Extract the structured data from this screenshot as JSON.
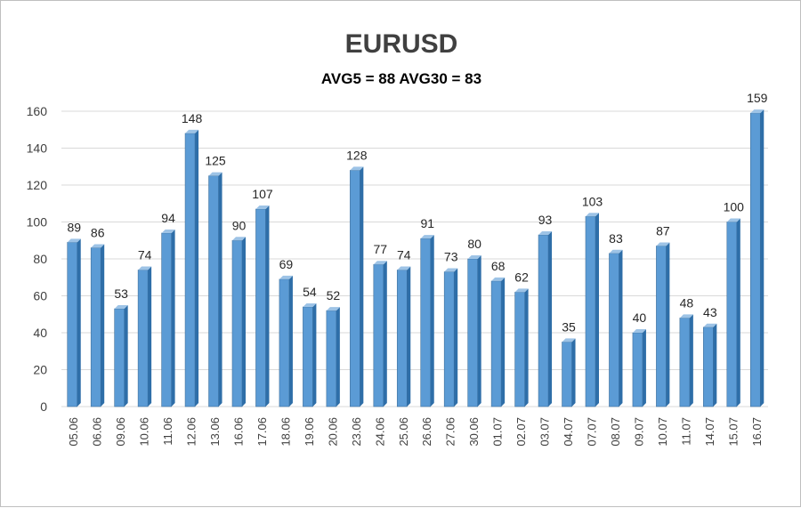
{
  "chart_data": {
    "type": "bar",
    "title": "EURUSD",
    "subtitle": "AVG5 = 88 AVG30 = 83",
    "categories": [
      "05.06",
      "06.06",
      "09.06",
      "10.06",
      "11.06",
      "12.06",
      "13.06",
      "16.06",
      "17.06",
      "18.06",
      "19.06",
      "20.06",
      "23.06",
      "24.06",
      "25.06",
      "26.06",
      "27.06",
      "30.06",
      "01.07",
      "02.07",
      "03.07",
      "04.07",
      "07.07",
      "08.07",
      "09.07",
      "10.07",
      "11.07",
      "14.07",
      "15.07",
      "16.07"
    ],
    "values": [
      89,
      86,
      53,
      74,
      94,
      148,
      125,
      90,
      107,
      69,
      54,
      52,
      128,
      77,
      74,
      91,
      73,
      80,
      68,
      62,
      93,
      35,
      103,
      83,
      40,
      87,
      48,
      43,
      100,
      159
    ],
    "ylim": [
      0,
      160
    ],
    "yticks": [
      0,
      20,
      40,
      60,
      80,
      100,
      120,
      140,
      160
    ],
    "grid": true,
    "legend": "none",
    "colors": {
      "bar_front": "#5b9bd5",
      "bar_side": "#2e6ea8",
      "bar_top": "#9dc3e6",
      "grid": "#d9d9d9"
    }
  }
}
